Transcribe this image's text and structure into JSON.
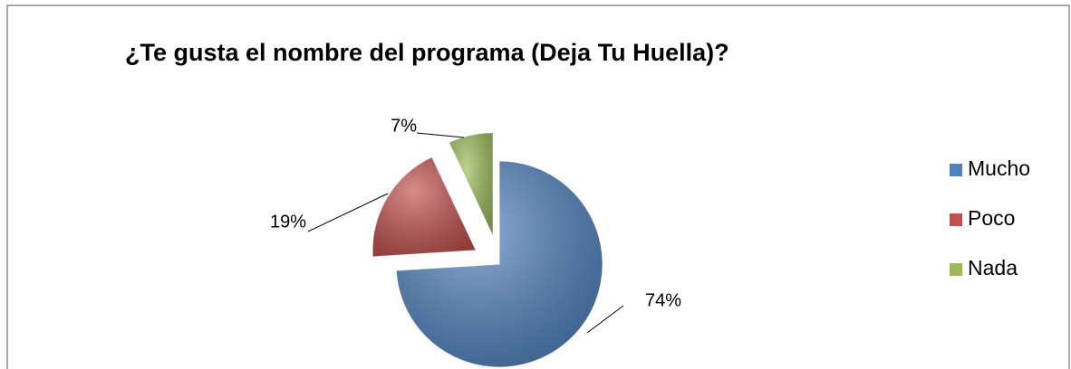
{
  "chart_data": {
    "type": "pie",
    "title": "¿Te gusta el nombre del programa (Deja Tu Huella)?",
    "categories": [
      "Mucho",
      "Poco",
      "Nada"
    ],
    "values": [
      74,
      19,
      7
    ],
    "value_labels": [
      "74%",
      "19%",
      "7%"
    ],
    "colors": [
      "#4f81bd",
      "#c0504d",
      "#9bbb59"
    ],
    "legend": "right"
  }
}
